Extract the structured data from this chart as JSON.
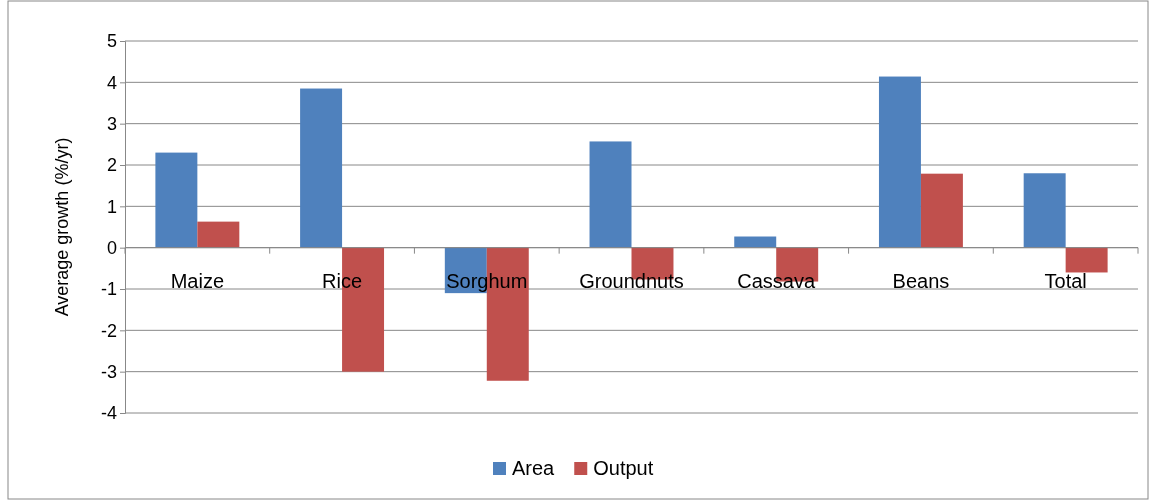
{
  "chart_data": {
    "type": "bar",
    "ylabel": "Average growth (%/yr)",
    "categories": [
      "Maize",
      "Rice",
      "Sorghum",
      "Groundnuts",
      "Cassava",
      "Beans",
      "Total"
    ],
    "series": [
      {
        "name": "Area",
        "color": "#4f81bd",
        "values": [
          2.3,
          3.85,
          -1.1,
          2.57,
          0.27,
          4.14,
          1.8
        ]
      },
      {
        "name": "Output",
        "color": "#c0504d",
        "values": [
          0.63,
          -3.0,
          -3.22,
          -0.77,
          -0.82,
          1.79,
          -0.6
        ]
      }
    ],
    "ylim": [
      -4,
      5
    ],
    "yticks": [
      -4,
      -3,
      -2,
      -1,
      0,
      1,
      2,
      3,
      4,
      5
    ],
    "grid": "y",
    "legend": "bottom"
  }
}
